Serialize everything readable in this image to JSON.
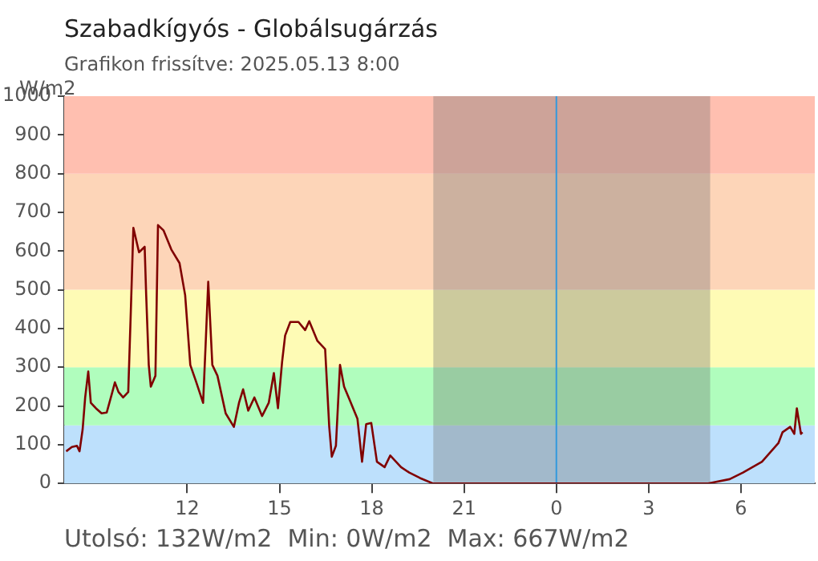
{
  "chart_data": {
    "type": "line",
    "title": "Szabadkígyós - Globálsugárzás",
    "subtitle": "Grafikon frissítve: 2025.05.13 8:00",
    "ylabel": "W/m2",
    "annotations": [
      "Utolsó: 132W/m2  Min: 0W/m2  Max: 667W/m2"
    ],
    "x": [
      "2025-05-12T08:04",
      "2025-05-12T08:15",
      "2025-05-12T08:25",
      "2025-05-12T08:30",
      "2025-05-12T08:36",
      "2025-05-12T08:41",
      "2025-05-12T08:47",
      "2025-05-12T08:52",
      "2025-05-12T09:02",
      "2025-05-12T09:13",
      "2025-05-12T09:23",
      "2025-05-12T09:34",
      "2025-05-12T09:39",
      "2025-05-12T09:46",
      "2025-05-12T09:55",
      "2025-05-12T10:05",
      "2025-05-12T10:10",
      "2025-05-12T10:15",
      "2025-05-12T10:26",
      "2025-05-12T10:37",
      "2025-05-12T10:40",
      "2025-05-12T10:45",
      "2025-05-12T10:49",
      "2025-05-12T10:58",
      "2025-05-12T11:03",
      "2025-05-12T11:14",
      "2025-05-12T11:29",
      "2025-05-12T11:45",
      "2025-05-12T11:56",
      "2025-05-12T12:06",
      "2025-05-12T12:17",
      "2025-05-12T12:31",
      "2025-05-12T12:36",
      "2025-05-12T12:41",
      "2025-05-12T12:49",
      "2025-05-12T12:59",
      "2025-05-12T13:15",
      "2025-05-12T13:31",
      "2025-05-12T13:41",
      "2025-05-12T13:49",
      "2025-05-12T13:59",
      "2025-05-12T14:11",
      "2025-05-12T14:26",
      "2025-05-12T14:39",
      "2025-05-12T14:49",
      "2025-05-12T14:57",
      "2025-05-12T15:05",
      "2025-05-12T15:11",
      "2025-05-12T15:21",
      "2025-05-12T15:37",
      "2025-05-12T15:50",
      "2025-05-12T15:58",
      "2025-05-12T16:14",
      "2025-05-12T16:29",
      "2025-05-12T16:37",
      "2025-05-12T16:42",
      "2025-05-12T16:50",
      "2025-05-12T16:58",
      "2025-05-12T17:06",
      "2025-05-12T17:17",
      "2025-05-12T17:32",
      "2025-05-12T17:41",
      "2025-05-12T17:49",
      "2025-05-12T17:59",
      "2025-05-12T18:10",
      "2025-05-12T18:25",
      "2025-05-12T18:36",
      "2025-05-12T18:57",
      "2025-05-12T19:13",
      "2025-05-12T19:34",
      "2025-05-12T19:59",
      "2025-05-13T04:56",
      "2025-05-13T05:38",
      "2025-05-13T06:04",
      "2025-05-13T06:41",
      "2025-05-13T07:13",
      "2025-05-13T07:21",
      "2025-05-13T07:36",
      "2025-05-13T07:44",
      "2025-05-13T07:49",
      "2025-05-13T07:57",
      "2025-05-13T08:00"
    ],
    "series": [
      {
        "color": "#800000",
        "values": [
          83,
          94,
          97,
          83,
          139,
          222,
          289,
          208,
          194,
          181,
          183,
          236,
          261,
          236,
          222,
          236,
          444,
          660,
          597,
          611,
          486,
          306,
          250,
          278,
          667,
          653,
          604,
          569,
          486,
          306,
          264,
          208,
          361,
          521,
          306,
          278,
          181,
          146,
          208,
          243,
          188,
          222,
          174,
          208,
          285,
          194,
          313,
          382,
          417,
          417,
          396,
          419,
          368,
          347,
          146,
          69,
          97,
          306,
          250,
          215,
          167,
          56,
          153,
          156,
          56,
          42,
          72,
          42,
          28,
          14,
          0,
          0,
          11,
          28,
          56,
          104,
          132,
          146,
          128,
          194,
          128,
          132
        ]
      }
    ],
    "xlim": [
      "2025-05-12T08:00",
      "2025-05-13T08:24"
    ],
    "xticks": [
      {
        "value": "2025-05-12T12:00",
        "label": "12"
      },
      {
        "value": "2025-05-12T15:00",
        "label": "15"
      },
      {
        "value": "2025-05-12T18:00",
        "label": "18"
      },
      {
        "value": "2025-05-12T21:00",
        "label": "21"
      },
      {
        "value": "2025-05-13T00:00",
        "label": "0"
      },
      {
        "value": "2025-05-13T03:00",
        "label": "3"
      },
      {
        "value": "2025-05-13T06:00",
        "label": "6"
      }
    ],
    "ylim": [
      0,
      1000
    ],
    "yticks": [
      0,
      100,
      200,
      300,
      400,
      500,
      600,
      700,
      800,
      900,
      1000
    ],
    "bands": [
      {
        "axis": "y",
        "from": 0,
        "to": 150,
        "color": "#bde0fc"
      },
      {
        "axis": "y",
        "from": 150,
        "to": 300,
        "color": "#b0fdbd"
      },
      {
        "axis": "y",
        "from": 300,
        "to": 500,
        "color": "#fefbb5"
      },
      {
        "axis": "y",
        "from": 500,
        "to": 800,
        "color": "#fdd5b8"
      },
      {
        "axis": "y",
        "from": 800,
        "to": 1000,
        "color": "#ffbfb0"
      },
      {
        "axis": "x",
        "from": "2025-05-12T20:00",
        "to": "2025-05-13T05:00",
        "color": "#707070"
      }
    ],
    "ref_lines": [
      {
        "axis": "x",
        "value": "2025-05-13T00:00",
        "color": "#3399dd"
      }
    ]
  }
}
